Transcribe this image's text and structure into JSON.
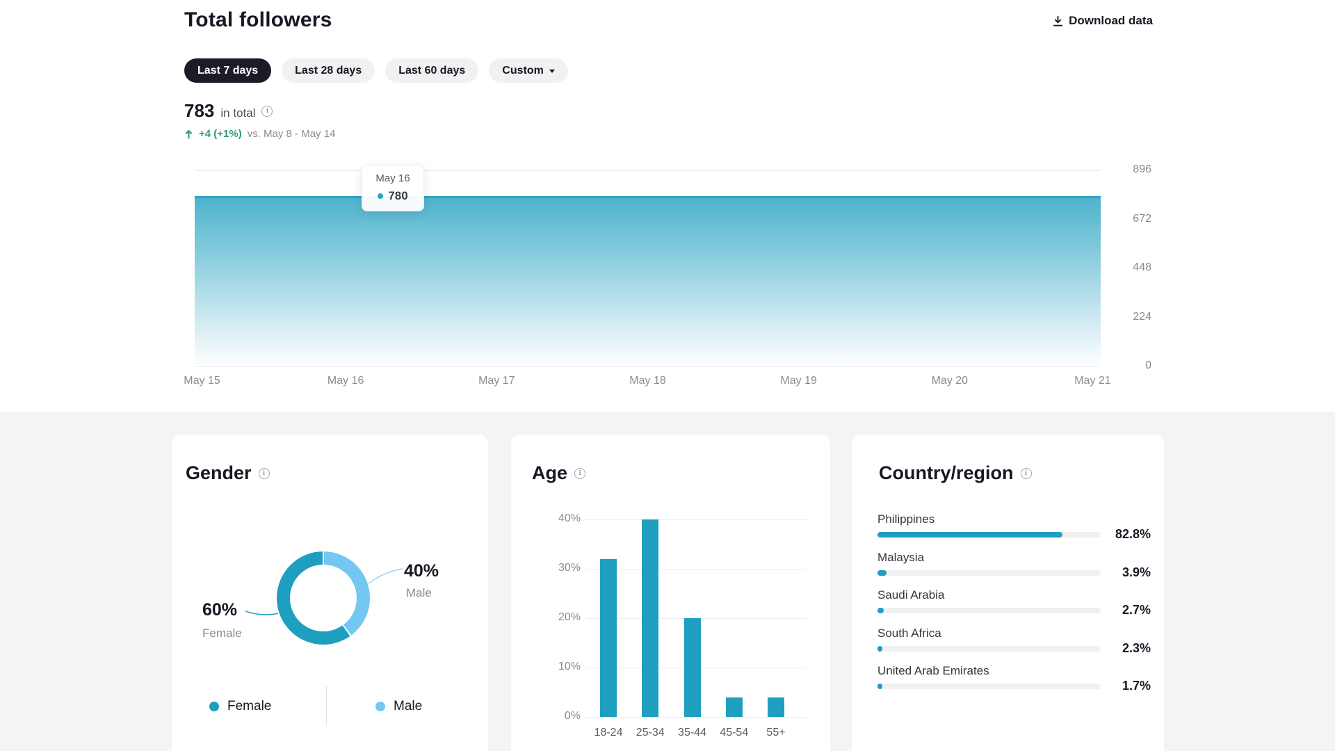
{
  "header": {
    "title": "Total followers",
    "download": "Download data"
  },
  "filters": [
    {
      "label": "Last 7 days",
      "active": true,
      "caret": false
    },
    {
      "label": "Last 28 days",
      "active": false,
      "caret": false
    },
    {
      "label": "Last 60 days",
      "active": false,
      "caret": false
    },
    {
      "label": "Custom",
      "active": false,
      "caret": true
    }
  ],
  "summary": {
    "total": "783",
    "suffix": "in total",
    "delta": "+4 (+1%)",
    "compare": "vs. May 8 - May 14"
  },
  "tooltip": {
    "date": "May 16",
    "value": "780"
  },
  "colors": {
    "teal": "#1e9fc0",
    "area_stroke": "#2aa2c2",
    "male_blue": "#74c7f0",
    "green": "#2f9e6e",
    "dark": "#161823",
    "gray_text": "#8a8b91"
  },
  "chart_data": [
    {
      "id": "followers_trend",
      "type": "area",
      "title": "Total followers",
      "x": [
        "May 15",
        "May 16",
        "May 17",
        "May 18",
        "May 19",
        "May 20",
        "May 21"
      ],
      "values": [
        780,
        780,
        780,
        780,
        780,
        780,
        783
      ],
      "highlighted_point": {
        "x": "May 16",
        "value": 780
      },
      "yticks": [
        896,
        672,
        448,
        224,
        0
      ],
      "ylim": [
        0,
        896
      ],
      "grid": true,
      "legend_position": "none"
    },
    {
      "id": "gender",
      "type": "pie",
      "title": "Gender",
      "slices": [
        {
          "label": "Female",
          "pct": 60,
          "color": "#1e9fc0"
        },
        {
          "label": "Male",
          "pct": 40,
          "color": "#74c7f0"
        }
      ]
    },
    {
      "id": "age",
      "type": "bar",
      "title": "Age",
      "categories": [
        "18-24",
        "25-34",
        "35-44",
        "45-54",
        "55+"
      ],
      "values": [
        32,
        40,
        20,
        4,
        4
      ],
      "yticks": [
        "40%",
        "30%",
        "20%",
        "10%",
        "0%"
      ],
      "ylim": [
        0,
        40
      ],
      "grid": true
    },
    {
      "id": "country",
      "type": "hbar",
      "title": "Country/region",
      "rows": [
        {
          "label": "Philippines",
          "pct": 82.8,
          "display": "82.8%"
        },
        {
          "label": "Malaysia",
          "pct": 3.9,
          "display": "3.9%"
        },
        {
          "label": "Saudi Arabia",
          "pct": 2.7,
          "display": "2.7%"
        },
        {
          "label": "South Africa",
          "pct": 2.3,
          "display": "2.3%"
        },
        {
          "label": "United Arab Emirates",
          "pct": 1.7,
          "display": "1.7%"
        }
      ]
    }
  ]
}
